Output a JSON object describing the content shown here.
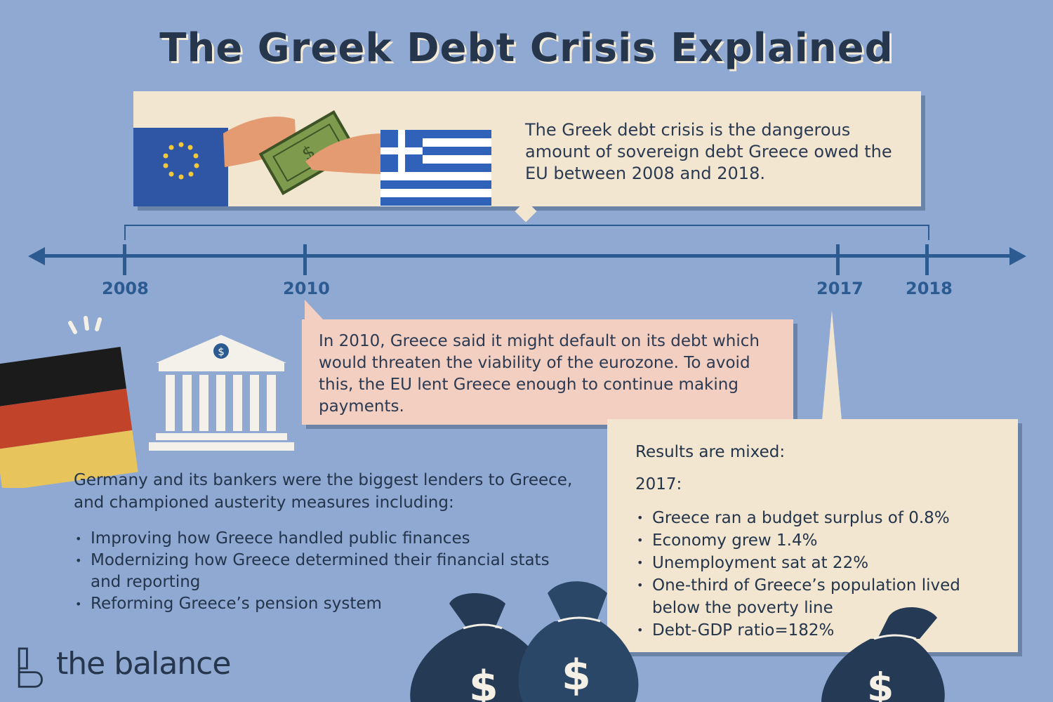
{
  "title": "The Greek Debt Crisis Explained",
  "intro": {
    "text": "The Greek debt crisis is the dangerous amount of sovereign debt Greece owed the EU between 2008 and 2018.",
    "illustration": "eu-hand-passing-money-to-greek-hand"
  },
  "timeline": {
    "years": [
      "2008",
      "2010",
      "2017",
      "2018"
    ]
  },
  "event_2010": {
    "text": "In 2010, Greece said it might default on its debt which would threaten the viability of the eurozone. To avoid this, the EU lent Greece enough to continue making payments."
  },
  "germany": {
    "text": "Germany and its bankers were the biggest lenders to Greece, and championed austerity measures including:",
    "measures": [
      "Improving how Greece handled public finances",
      "Modernizing how Greece determined their financial stats and reporting",
      "Reforming Greece’s pension system"
    ],
    "icons": [
      "germany-flag-icon",
      "bank-building-icon"
    ]
  },
  "results": {
    "heading": "Results are mixed:",
    "year": "2017:",
    "items": [
      "Greece ran a budget surplus of 0.8%",
      "Economy grew 1.4%",
      "Unemployment sat at 22%",
      "One-third of Greece’s population lived below the poverty line",
      "Debt-GDP ratio=182%"
    ]
  },
  "brand": {
    "name": "the balance"
  },
  "colors": {
    "background": "#8fa9d2",
    "timeline": "#2c5b91",
    "cream_box": "#f2e6d0",
    "pink_box": "#f2cfc0",
    "money_bag": "#253a55"
  }
}
